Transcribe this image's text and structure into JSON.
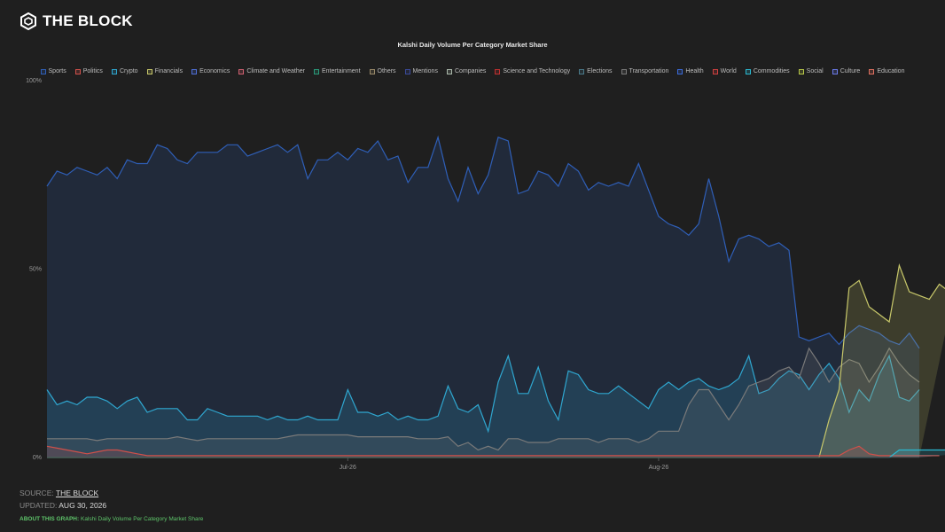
{
  "brand": {
    "name": "THE BLOCK"
  },
  "chart_data": {
    "type": "area",
    "title": "Kalshi Daily Volume Per Category Market Share",
    "xlabel": "",
    "ylabel": "",
    "ylim": [
      0,
      100
    ],
    "y_ticks": [
      "0%",
      "50%",
      "100%"
    ],
    "x_ticks": [
      "Jul-26",
      "Aug-26"
    ],
    "grid": false,
    "legend_position": "top",
    "legend": [
      "Sports",
      "Politics",
      "Crypto",
      "Financials",
      "Economics",
      "Climate and Weather",
      "Entertainment",
      "Others",
      "Mentions",
      "Companies",
      "Science and Technology",
      "Elections",
      "Transportation",
      "Health",
      "World",
      "Commodities",
      "Social",
      "Culture",
      "Education"
    ],
    "legend_colors": [
      "#2f5fb8",
      "#d0504a",
      "#2fa7d0",
      "#c8c86a",
      "#4f6fd8",
      "#d06070",
      "#2a9a7a",
      "#9a8a6a",
      "#3a4a9a",
      "#aab8aa",
      "#c03030",
      "#4a7a8a",
      "#7a7a7a",
      "#3a6ad8",
      "#d04040",
      "#2ab8d0",
      "#b8c848",
      "#6a7ae8",
      "#e07060"
    ],
    "x_start": "2026-06-01",
    "series": [
      {
        "name": "Sports",
        "color": "#2f5fb8",
        "values": [
          72,
          76,
          75,
          77,
          76,
          75,
          77,
          74,
          79,
          78,
          78,
          83,
          82,
          79,
          78,
          81,
          81,
          81,
          83,
          83,
          80,
          81,
          82,
          83,
          81,
          83,
          74,
          79,
          79,
          81,
          79,
          82,
          81,
          84,
          79,
          80,
          73,
          77,
          77,
          85,
          74,
          68,
          77,
          70,
          75,
          85,
          84,
          70,
          71,
          76,
          75,
          72,
          78,
          76,
          71,
          73,
          72,
          73,
          72,
          78,
          71,
          64,
          62,
          61,
          59,
          62,
          74,
          64,
          52,
          58,
          59,
          58,
          56,
          57,
          55,
          32,
          31,
          32,
          33,
          30,
          33,
          35,
          34,
          33,
          31,
          30,
          33,
          29
        ]
      },
      {
        "name": "Crypto",
        "color": "#2fa7d0",
        "values": [
          18,
          14,
          15,
          14,
          16,
          16,
          15,
          13,
          15,
          16,
          12,
          13,
          13,
          13,
          10,
          10,
          13,
          12,
          11,
          11,
          11,
          11,
          10,
          11,
          10,
          10,
          11,
          10,
          10,
          10,
          18,
          12,
          12,
          11,
          12,
          10,
          11,
          10,
          10,
          11,
          19,
          13,
          12,
          14,
          7,
          20,
          27,
          17,
          17,
          24,
          15,
          10,
          23,
          22,
          18,
          17,
          17,
          19,
          17,
          15,
          13,
          18,
          20,
          18,
          20,
          21,
          19,
          18,
          19,
          21,
          27,
          17,
          18,
          21,
          23,
          22,
          18,
          22,
          25,
          21,
          12,
          18,
          15,
          22,
          27,
          16,
          15,
          18
        ]
      },
      {
        "name": "Transportation",
        "color": "#7a7a7a",
        "values": [
          5,
          5,
          5,
          5,
          5,
          4.5,
          5,
          5,
          5,
          5,
          5,
          5,
          5,
          5.5,
          5,
          4.5,
          5,
          5,
          5,
          5,
          5,
          5,
          5,
          5,
          5.5,
          6,
          6,
          6,
          6,
          6,
          6,
          5.5,
          5.5,
          5.5,
          5.5,
          5.5,
          5.5,
          5,
          5,
          5,
          5.5,
          3,
          4,
          2,
          3,
          2,
          5,
          5,
          4,
          4,
          4,
          5,
          5,
          5,
          5,
          4,
          5,
          5,
          5,
          4,
          5,
          7,
          7,
          7,
          14,
          18,
          18,
          14,
          10,
          14,
          19,
          20,
          21,
          23,
          24,
          21,
          29,
          25,
          20,
          24,
          26,
          25,
          20,
          24,
          29,
          25,
          22,
          20
        ]
      },
      {
        "name": "Social",
        "color": "#c8c86a",
        "values": [
          0,
          0,
          0,
          0,
          0,
          0,
          0,
          0,
          0,
          0,
          0,
          0,
          0,
          0,
          0,
          0,
          0,
          0,
          0,
          0,
          0,
          0,
          0,
          0,
          0,
          0,
          0,
          0,
          0,
          0,
          0,
          0,
          0,
          0,
          0,
          0,
          0,
          0,
          0,
          0,
          0,
          0,
          0,
          0,
          0,
          0,
          0,
          0,
          0,
          0,
          0,
          0,
          0,
          0,
          0,
          0,
          0,
          0,
          0,
          0,
          0,
          0,
          0,
          0,
          0,
          0,
          0,
          0,
          0,
          0,
          0,
          0,
          0,
          0,
          0,
          0,
          0,
          0,
          10,
          18,
          45,
          47,
          40,
          38,
          36,
          51,
          44,
          43,
          42,
          46,
          44,
          51
        ]
      },
      {
        "name": "Politics",
        "color": "#d0504a",
        "values": [
          3,
          2.5,
          2,
          1.5,
          1,
          1.5,
          2,
          2,
          1.5,
          1,
          0.5,
          0.5,
          0.5,
          0.5,
          0.5,
          0.5,
          0.5,
          0.5,
          0.5,
          0.5,
          0.5,
          0.5,
          0.5,
          0.5,
          0.5,
          0.5,
          0.5,
          0.5,
          0.5,
          0.5,
          0.5,
          0.5,
          0.5,
          0.5,
          0.5,
          0.5,
          0.5,
          0.5,
          0.5,
          0.5,
          0.5,
          0.5,
          0.5,
          0.5,
          0.5,
          0.5,
          0.5,
          0.5,
          0.5,
          0.5,
          0.5,
          0.5,
          0.5,
          0.5,
          0.5,
          0.5,
          0.5,
          0.5,
          0.5,
          0.5,
          0.5,
          0.5,
          0.5,
          0.5,
          0.5,
          0.5,
          0.5,
          0.5,
          0.5,
          0.5,
          0.5,
          0.5,
          0.5,
          0.5,
          0.5,
          0.5,
          0.5,
          0.5,
          0.5,
          0.5,
          2,
          3,
          1,
          0.5,
          0.5,
          0.5,
          0.5,
          0.5,
          0.5,
          0.5
        ]
      },
      {
        "name": "Commodities",
        "color": "#2ab8d0",
        "values": [
          0,
          0,
          0,
          0,
          0,
          0,
          0,
          0,
          0,
          0,
          0,
          0,
          0,
          0,
          0,
          0,
          0,
          0,
          0,
          0,
          0,
          0,
          0,
          0,
          0,
          0,
          0,
          0,
          0,
          0,
          0,
          0,
          0,
          0,
          0,
          0,
          0,
          0,
          0,
          0,
          0,
          0,
          0,
          0,
          0,
          0,
          0,
          0,
          0,
          0,
          0,
          0,
          0,
          0,
          0,
          0,
          0,
          0,
          0,
          0,
          0,
          0,
          0,
          0,
          0,
          0,
          0,
          0,
          0,
          0,
          0,
          0,
          0,
          0,
          0,
          0,
          0,
          0,
          0,
          0,
          0,
          0,
          0,
          0,
          0,
          2,
          2,
          2,
          2,
          2,
          2,
          1
        ]
      }
    ]
  },
  "footer": {
    "source_label": "SOURCE:",
    "source_value": "THE BLOCK",
    "updated_label": "UPDATED:",
    "updated_value": "AUG 30, 2026",
    "about_label": "ABOUT THIS GRAPH:",
    "about_value": "Kalshi Daily Volume Per Category Market Share"
  }
}
